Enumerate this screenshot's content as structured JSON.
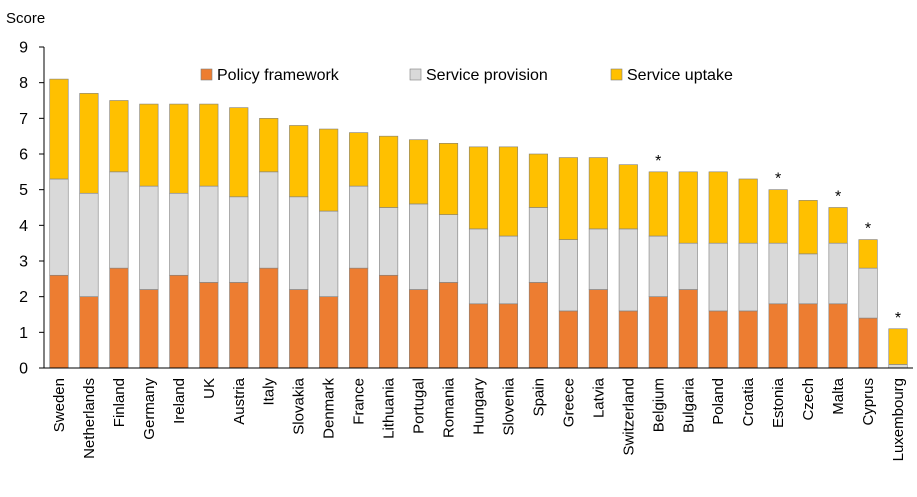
{
  "chart_data": {
    "type": "bar",
    "stacked": true,
    "title": "",
    "xlabel": "",
    "ylabel": "Score",
    "ylim": [
      0,
      9
    ],
    "yticks": [
      "0",
      "1",
      "2",
      "3",
      "4",
      "5",
      "6",
      "7",
      "8",
      "9"
    ],
    "grid": false,
    "legend_position": "top-right",
    "categories": [
      "Sweden",
      "Netherlands",
      "Finland",
      "Germany",
      "Ireland",
      "UK",
      "Austria",
      "Italy",
      "Slovakia",
      "Denmark",
      "France",
      "Lithuania",
      "Portugal",
      "Romania",
      "Hungary",
      "Slovenia",
      "Spain",
      "Greece",
      "Latvia",
      "Switzerland",
      "Belgium",
      "Bulgaria",
      "Poland",
      "Croatia",
      "Estonia",
      "Czech",
      "Malta",
      "Cyprus",
      "Luxembourg"
    ],
    "annotations": [
      "",
      "",
      "",
      "",
      "",
      "",
      "",
      "",
      "",
      "",
      "",
      "",
      "",
      "",
      "",
      "",
      "",
      "",
      "",
      "",
      "*",
      "",
      "",
      "",
      "*",
      "",
      "*",
      "*",
      "*"
    ],
    "series": [
      {
        "name": "Policy framework",
        "color": "#ED7D31",
        "values": [
          2.6,
          2.0,
          2.8,
          2.2,
          2.6,
          2.4,
          2.4,
          2.8,
          2.2,
          2.0,
          2.8,
          2.6,
          2.2,
          2.4,
          1.8,
          1.8,
          2.4,
          1.6,
          2.2,
          1.6,
          2.0,
          2.2,
          1.6,
          1.6,
          1.8,
          1.8,
          1.8,
          1.4,
          0.0
        ]
      },
      {
        "name": "Service provision",
        "color": "#D9D9D9",
        "values": [
          2.7,
          2.9,
          2.7,
          2.9,
          2.3,
          2.7,
          2.4,
          2.7,
          2.6,
          2.4,
          2.3,
          1.9,
          2.4,
          1.9,
          2.1,
          1.9,
          2.1,
          2.0,
          1.7,
          2.3,
          1.7,
          1.3,
          1.9,
          1.9,
          1.7,
          1.4,
          1.7,
          1.4,
          0.1
        ]
      },
      {
        "name": "Service uptake",
        "color": "#FFC000",
        "values": [
          2.8,
          2.8,
          2.0,
          2.3,
          2.5,
          2.3,
          2.5,
          1.5,
          2.0,
          2.3,
          1.5,
          2.0,
          1.8,
          2.0,
          2.3,
          2.5,
          1.5,
          2.3,
          2.0,
          1.8,
          1.8,
          2.0,
          2.0,
          1.8,
          1.5,
          1.5,
          1.0,
          0.8,
          1.0
        ]
      }
    ]
  }
}
